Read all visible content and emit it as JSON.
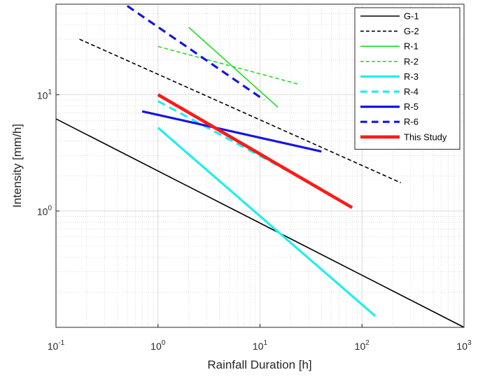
{
  "chart_data": {
    "type": "line",
    "title": "",
    "xlabel": "Rainfall Duration [h]",
    "ylabel": "Intensity [mm/h]",
    "xscale": "log",
    "yscale": "log",
    "xlim": [
      0.1,
      1000
    ],
    "ylim": [
      0.1,
      60
    ],
    "grid": true,
    "legend_position": "top-right",
    "x_ticks": [
      {
        "base": "10",
        "exp": "-1",
        "value": 0.1
      },
      {
        "base": "10",
        "exp": "0",
        "value": 1
      },
      {
        "base": "10",
        "exp": "1",
        "value": 10
      },
      {
        "base": "10",
        "exp": "2",
        "value": 100
      },
      {
        "base": "10",
        "exp": "3",
        "value": 1000
      }
    ],
    "y_ticks": [
      {
        "base": "10",
        "exp": "0",
        "value": 1
      },
      {
        "base": "10",
        "exp": "1",
        "value": 10
      }
    ],
    "series": [
      {
        "name": "G-1",
        "color": "#000000",
        "dash": "solid",
        "width": "thin",
        "x": [
          0.1,
          1000
        ],
        "y": [
          6.2,
          0.1
        ]
      },
      {
        "name": "G-2",
        "color": "#000000",
        "dash": "dashed",
        "width": "thin",
        "x": [
          0.17,
          240
        ],
        "y": [
          30,
          1.75
        ]
      },
      {
        "name": "R-1",
        "color": "#22dd22",
        "dash": "solid",
        "width": "thin",
        "x": [
          2,
          15
        ],
        "y": [
          38,
          7.8
        ]
      },
      {
        "name": "R-2",
        "color": "#22dd22",
        "dash": "dashed",
        "width": "thin",
        "x": [
          1,
          24
        ],
        "y": [
          26,
          12.3
        ]
      },
      {
        "name": "R-3",
        "color": "#22eeee",
        "dash": "solid",
        "width": "thick",
        "x": [
          1,
          135
        ],
        "y": [
          5.2,
          0.125
        ]
      },
      {
        "name": "R-4",
        "color": "#22eeee",
        "dash": "dashed",
        "width": "thick",
        "x": [
          1,
          40
        ],
        "y": [
          8.8,
          1.55
        ]
      },
      {
        "name": "R-5",
        "color": "#1414e6",
        "dash": "solid",
        "width": "thick",
        "x": [
          0.7,
          40
        ],
        "y": [
          7.2,
          3.25
        ]
      },
      {
        "name": "R-6",
        "color": "#1414e6",
        "dash": "dashed",
        "width": "thick",
        "x": [
          0.5,
          11
        ],
        "y": [
          58,
          9
        ]
      },
      {
        "name": "This Study",
        "color": "#ff1a1a",
        "dash": "solid",
        "width": "thicker",
        "x": [
          1,
          80
        ],
        "y": [
          10,
          1.07
        ]
      }
    ]
  }
}
